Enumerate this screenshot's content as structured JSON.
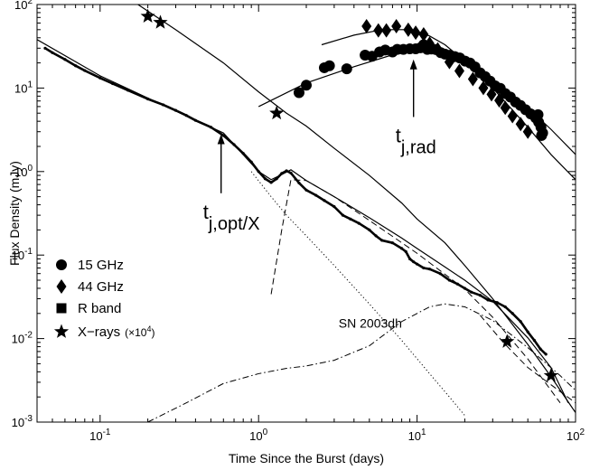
{
  "chart_data": {
    "type": "line",
    "xlabel": "Time Since the Burst  (days)",
    "ylabel": "Flux Density  (mJy)",
    "xlim": [
      0.04,
      100
    ],
    "ylim": [
      0.001,
      100
    ],
    "xscale": "log",
    "yscale": "log",
    "grid": false,
    "legend_position": "lower-left",
    "x_ticks": [
      {
        "value": 0.1,
        "base": "10",
        "exp": "-1"
      },
      {
        "value": 1,
        "base": "10",
        "exp": "0"
      },
      {
        "value": 10,
        "base": "10",
        "exp": "1"
      },
      {
        "value": 100,
        "base": "10",
        "exp": "2"
      }
    ],
    "y_ticks": [
      {
        "value": 0.001,
        "base": "10",
        "exp": "-3"
      },
      {
        "value": 0.01,
        "base": "10",
        "exp": "-2"
      },
      {
        "value": 0.1,
        "base": "10",
        "exp": "-1"
      },
      {
        "value": 1,
        "base": "10",
        "exp": "0"
      },
      {
        "value": 10,
        "base": "10",
        "exp": "1"
      },
      {
        "value": 100,
        "base": "10",
        "exp": "2"
      }
    ],
    "legend": [
      {
        "marker": "circle",
        "label": "15 GHz",
        "suffix": ""
      },
      {
        "marker": "diamond",
        "label": "44 GHz",
        "suffix": ""
      },
      {
        "marker": "square",
        "label": "R band",
        "suffix": ""
      },
      {
        "marker": "star",
        "label": "X−rays",
        "suffix": "(×10",
        "suffix_exp": "4",
        "suffix_end": ")"
      }
    ],
    "annotations": [
      {
        "id": "t-j-rad",
        "main": "t",
        "sub": "j,rad",
        "arrow_x": 9.5,
        "arrow_from_y": 4.5,
        "arrow_to_y": 22
      },
      {
        "id": "t-j-optx",
        "main": "t",
        "sub": "j,opt/X",
        "arrow_x": 0.58,
        "arrow_from_y": 0.55,
        "arrow_to_y": 2.8
      },
      {
        "id": "sn-2003dh",
        "text": "SN 2003dh",
        "x": 3.2,
        "y": 0.0135
      }
    ],
    "series": [
      {
        "name": "15 GHz",
        "kind": "points",
        "marker": "circle",
        "x": [
          1.8,
          2.0,
          2.6,
          2.8,
          3.6,
          4.7,
          5.2,
          5.8,
          6.3,
          7.0,
          7.5,
          8.2,
          9.0,
          9.8,
          10.5,
          11.0,
          11.6,
          12.3,
          13.1,
          14.1,
          15.0,
          16.1,
          17.3,
          18.6,
          20.1,
          21.6,
          23.2,
          25.0,
          26.9,
          28.9,
          31.1,
          33.5,
          36.0,
          38.8,
          41.8,
          44.9,
          48.4,
          52.1,
          56.0,
          58.5,
          60.5,
          62.0,
          58.0,
          61.0
        ],
        "y": [
          8.8,
          10.8,
          17.5,
          18.5,
          17.0,
          24.8,
          24.0,
          27.0,
          28.5,
          27.0,
          29.0,
          29.0,
          29.5,
          29.5,
          30.3,
          33.0,
          29.0,
          29.3,
          28.9,
          26.5,
          25.5,
          24.7,
          23.8,
          22.9,
          21.0,
          19.9,
          17.9,
          15.2,
          13.7,
          12.1,
          10.6,
          9.9,
          8.6,
          7.8,
          6.8,
          6.2,
          5.5,
          4.9,
          4.4,
          3.9,
          3.4,
          2.9,
          4.8,
          2.7
        ]
      },
      {
        "name": "44 GHz",
        "kind": "points",
        "marker": "diamond",
        "x": [
          4.8,
          5.7,
          6.4,
          7.4,
          8.8,
          9.8,
          11.0,
          12.0,
          13.5,
          16.0,
          18.5,
          22.5,
          26.2,
          29.5,
          33.0,
          36.0,
          40.0,
          45.0,
          50.0
        ],
        "y": [
          55.0,
          49.0,
          49.0,
          55.0,
          50.0,
          46.0,
          44.0,
          34.0,
          29.0,
          20.5,
          16.0,
          12.8,
          10.0,
          8.4,
          7.1,
          5.8,
          4.6,
          3.7,
          3.0
        ]
      },
      {
        "name": "R band",
        "kind": "points",
        "marker": "dense",
        "x": [
          0.045,
          0.05,
          0.06,
          0.07,
          0.08,
          0.1,
          0.12,
          0.15,
          0.2,
          0.25,
          0.3,
          0.35,
          0.4,
          0.5,
          0.6,
          0.7,
          0.8,
          0.9,
          1.0,
          1.1,
          1.2,
          1.3,
          1.4,
          1.5,
          1.6,
          1.8,
          2.0,
          2.3,
          2.6,
          3.0,
          3.4,
          3.8,
          4.3,
          5.0,
          5.5,
          6.0,
          7.0,
          8.0,
          8.5,
          9.0,
          9.5,
          10.0,
          11.0,
          12.0,
          14.0,
          16.0,
          18.0,
          20.0,
          22.0,
          25.0,
          28.0,
          32.0,
          36.0,
          40.0,
          45.0,
          50.0,
          55.0,
          60.0,
          65.0
        ],
        "y": [
          30.0,
          26.5,
          22.0,
          18.5,
          16.2,
          13.2,
          11.3,
          9.4,
          7.4,
          6.3,
          5.4,
          4.7,
          4.1,
          3.4,
          2.7,
          2.1,
          1.65,
          1.3,
          1.0,
          0.82,
          0.74,
          0.82,
          0.95,
          1.02,
          0.96,
          0.73,
          0.6,
          0.52,
          0.45,
          0.38,
          0.3,
          0.27,
          0.24,
          0.2,
          0.17,
          0.15,
          0.14,
          0.12,
          0.11,
          0.09,
          0.083,
          0.078,
          0.07,
          0.068,
          0.06,
          0.05,
          0.045,
          0.04,
          0.036,
          0.033,
          0.029,
          0.027,
          0.024,
          0.02,
          0.016,
          0.012,
          0.0095,
          0.0075,
          0.0065
        ]
      },
      {
        "name": "X−rays",
        "kind": "points",
        "marker": "star",
        "x": [
          0.2,
          0.24,
          1.3,
          37.0,
          70.0
        ],
        "y": [
          72.0,
          61.0,
          5.0,
          0.0092,
          0.0036
        ]
      },
      {
        "name": "15 GHz model",
        "kind": "line",
        "style": "solid",
        "x": [
          1.0,
          2.0,
          4.0,
          7.0,
          10.0,
          13.0,
          20.0,
          30.0,
          50.0,
          70.0,
          100.0
        ],
        "y": [
          6.0,
          11.5,
          18.0,
          25.0,
          28.0,
          28.0,
          21.0,
          12.5,
          5.8,
          3.2,
          1.6
        ]
      },
      {
        "name": "44 GHz model",
        "kind": "line",
        "style": "solid",
        "x": [
          2.5,
          4.0,
          6.0,
          9.0,
          12.0,
          15.0,
          20.0,
          30.0,
          50.0,
          70.0,
          100.0
        ],
        "y": [
          33.0,
          43.0,
          50.0,
          50.0,
          42.0,
          33.0,
          21.0,
          10.0,
          3.4,
          1.6,
          0.8
        ]
      },
      {
        "name": "X-ray model",
        "kind": "line",
        "style": "solid",
        "x": [
          0.15,
          0.3,
          0.6,
          1.0,
          1.5,
          2.0,
          3.0,
          5.0,
          8.0,
          10.0,
          15.0,
          20.0,
          30.0,
          50.0,
          70.0,
          100.0
        ],
        "y": [
          120.0,
          50.0,
          20.0,
          9.0,
          5.0,
          3.5,
          1.9,
          0.9,
          0.42,
          0.27,
          0.14,
          0.075,
          0.03,
          0.0085,
          0.0035,
          0.0013
        ]
      },
      {
        "name": "Optical total model",
        "kind": "line",
        "style": "solid",
        "x": [
          0.04,
          0.1,
          0.3,
          0.6,
          1.0,
          1.2,
          1.4,
          1.6,
          2.0,
          3.0,
          5.0,
          8.0,
          10.0,
          15.0,
          20.0,
          30.0,
          50.0,
          70.0,
          90.0
        ],
        "y": [
          38.0,
          14.0,
          5.3,
          2.9,
          1.0,
          0.8,
          0.92,
          1.05,
          0.78,
          0.5,
          0.28,
          0.16,
          0.12,
          0.072,
          0.05,
          0.028,
          0.0102,
          0.0045,
          0.0017
        ]
      },
      {
        "name": "Narrow jet component",
        "kind": "line",
        "style": "dotted",
        "x": [
          0.9,
          1.2,
          1.5,
          2.0,
          3.0,
          5.0,
          8.0,
          12.0,
          16.0,
          20.0
        ],
        "y": [
          1.0,
          0.5,
          0.3,
          0.17,
          0.075,
          0.026,
          0.0095,
          0.0038,
          0.002,
          0.0012
        ]
      },
      {
        "name": "Wide jet component",
        "kind": "line",
        "style": "dashed",
        "x": [
          1.2,
          1.4,
          1.6,
          2.0,
          3.0,
          5.0,
          10.0,
          20.0,
          30.0,
          50.0,
          80.0
        ],
        "y": [
          0.034,
          0.2,
          0.8,
          0.78,
          0.5,
          0.26,
          0.105,
          0.039,
          0.018,
          0.0057,
          0.0017
        ]
      },
      {
        "name": "Wide jet late component",
        "kind": "line",
        "style": "dashed",
        "x": [
          25.0,
          35.0,
          50.0,
          70.0,
          100.0
        ],
        "y": [
          0.019,
          0.009,
          0.0045,
          0.0028,
          0.0017
        ]
      },
      {
        "name": "SN 2003dh",
        "kind": "line",
        "style": "dashdot",
        "x": [
          0.2,
          0.35,
          0.6,
          1.0,
          1.5,
          2.0,
          3.0,
          5.0,
          8.0,
          12.0,
          15.0,
          20.0,
          30.0,
          50.0,
          80.0,
          100.0
        ],
        "y": [
          0.001,
          0.0017,
          0.0029,
          0.0038,
          0.0044,
          0.0047,
          0.0055,
          0.0082,
          0.016,
          0.024,
          0.026,
          0.024,
          0.0165,
          0.0078,
          0.0036,
          0.0024
        ]
      }
    ]
  }
}
